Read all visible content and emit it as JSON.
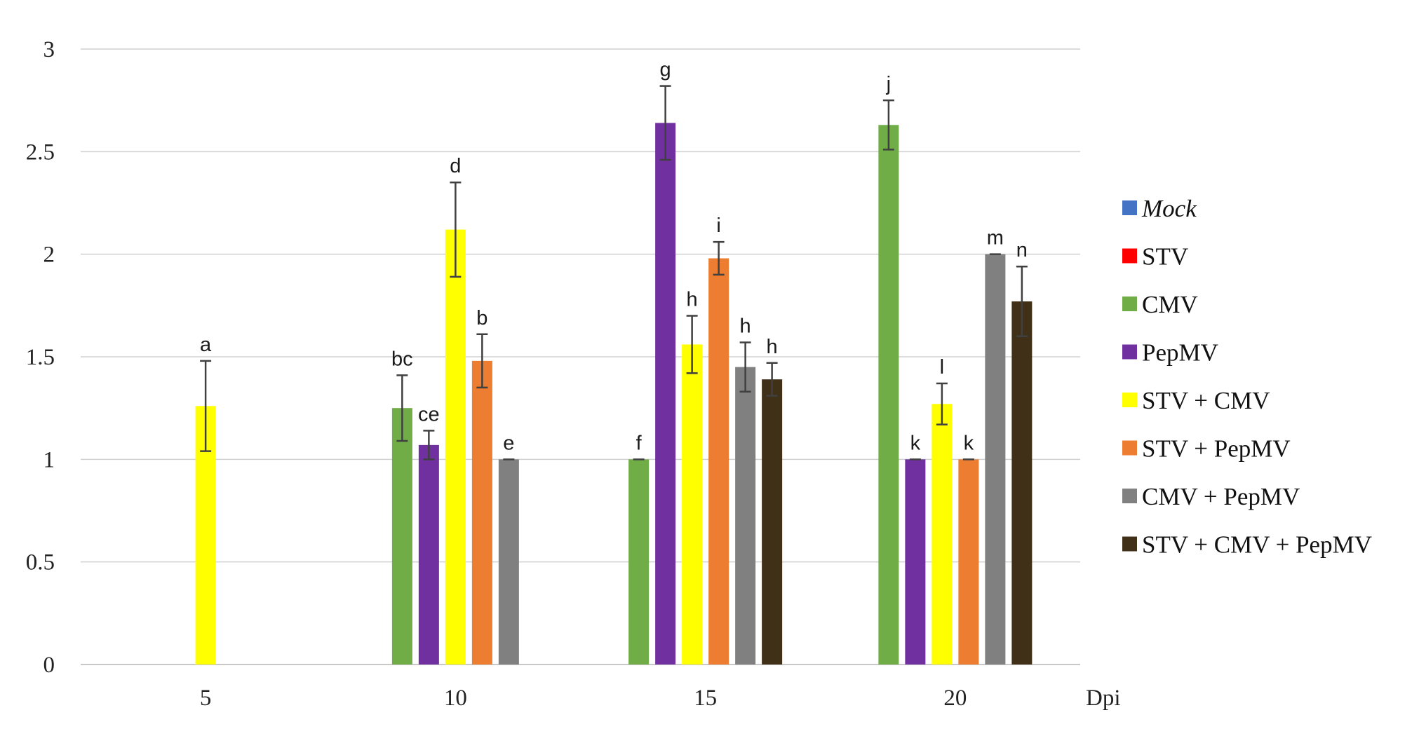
{
  "chart_data": {
    "type": "bar",
    "xlabel": "Dpi",
    "ylabel": "",
    "ylim": [
      0,
      3
    ],
    "yticks": [
      "0",
      "0.5",
      "1",
      "1.5",
      "2",
      "2.5",
      "3"
    ],
    "grid": true,
    "legend_position": "right",
    "categories": [
      "5",
      "10",
      "15",
      "20"
    ],
    "series": [
      {
        "name": "Mock",
        "italic": true,
        "color": "#4472C4",
        "values": [
          null,
          null,
          null,
          null
        ],
        "errors": [
          null,
          null,
          null,
          null
        ],
        "labels": [
          null,
          null,
          null,
          null
        ]
      },
      {
        "name": "STV",
        "italic": false,
        "color": "#FF0000",
        "values": [
          null,
          null,
          null,
          null
        ],
        "errors": [
          null,
          null,
          null,
          null
        ],
        "labels": [
          null,
          null,
          null,
          null
        ]
      },
      {
        "name": "CMV",
        "italic": false,
        "color": "#70AD47",
        "values": [
          null,
          1.25,
          1.0,
          2.63
        ],
        "errors": [
          null,
          0.16,
          0.0,
          0.12
        ],
        "labels": [
          null,
          "bc",
          "f",
          "j"
        ]
      },
      {
        "name": "PepMV",
        "italic": false,
        "color": "#7030A0",
        "values": [
          null,
          1.07,
          2.64,
          1.0
        ],
        "errors": [
          null,
          0.07,
          0.18,
          0.0
        ],
        "labels": [
          null,
          "ce",
          "g",
          "k"
        ]
      },
      {
        "name": "STV + CMV",
        "italic": false,
        "color": "#FFFF00",
        "values": [
          1.26,
          2.12,
          1.56,
          1.27
        ],
        "errors": [
          0.22,
          0.23,
          0.14,
          0.1
        ],
        "labels": [
          "a",
          "d",
          "h",
          "l"
        ]
      },
      {
        "name": "STV + PepMV",
        "italic": false,
        "color": "#ED7D31",
        "values": [
          null,
          1.48,
          1.98,
          1.0
        ],
        "errors": [
          null,
          0.13,
          0.08,
          0.0
        ],
        "labels": [
          null,
          "b",
          "i",
          "k"
        ]
      },
      {
        "name": "CMV + PepMV",
        "italic": false,
        "color": "#808080",
        "values": [
          null,
          1.0,
          1.45,
          2.0
        ],
        "errors": [
          null,
          0.0,
          0.12,
          0.0
        ],
        "labels": [
          null,
          "e",
          "h",
          "m"
        ]
      },
      {
        "name": "STV + CMV + PepMV",
        "italic": false,
        "color": "#403018",
        "values": [
          null,
          null,
          1.39,
          1.77
        ],
        "errors": [
          null,
          null,
          0.08,
          0.17
        ],
        "labels": [
          null,
          null,
          "h",
          "n"
        ]
      }
    ]
  }
}
